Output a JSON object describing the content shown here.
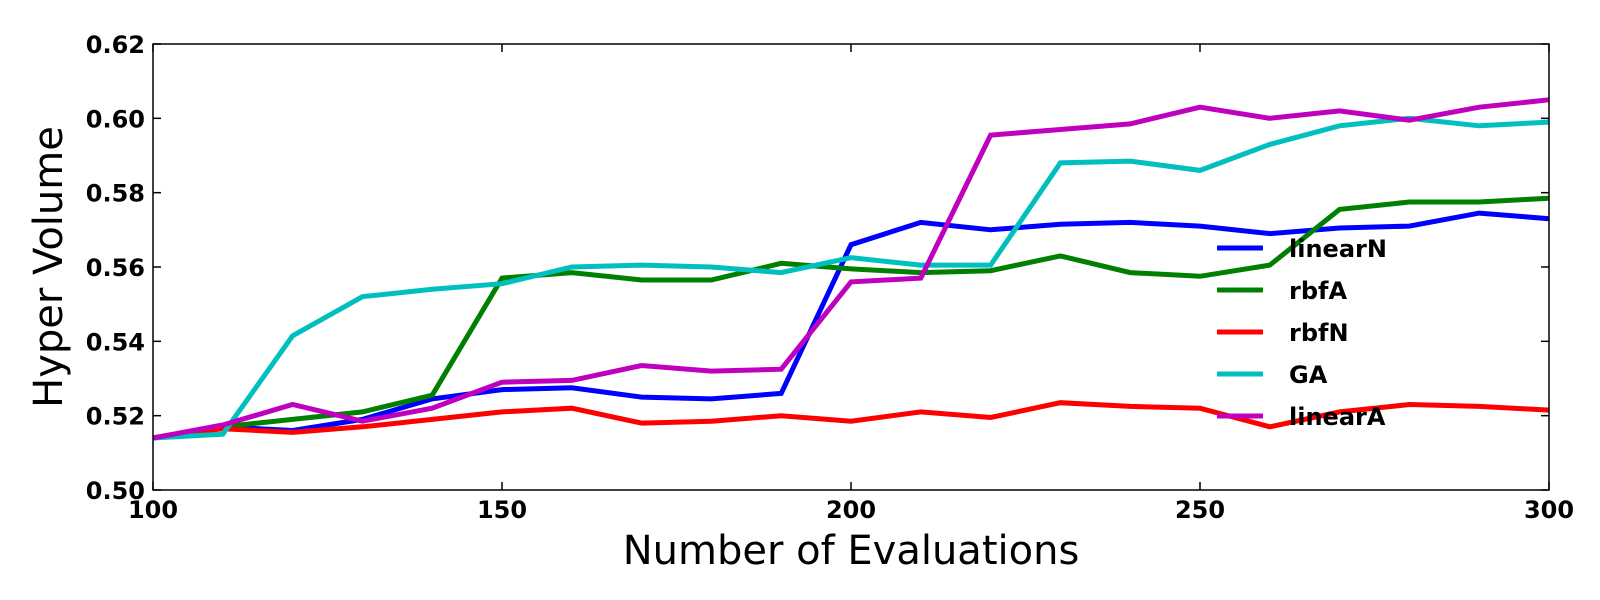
{
  "chart_data": {
    "type": "line",
    "title": "",
    "xlabel": "Number of Evaluations",
    "ylabel": "Hyper Volume",
    "xlim": [
      100,
      300
    ],
    "ylim": [
      0.5,
      0.62
    ],
    "xticks": [
      "100",
      "150",
      "200",
      "250",
      "300"
    ],
    "yticks": [
      "0.50",
      "0.52",
      "0.54",
      "0.56",
      "0.58",
      "0.60",
      "0.62"
    ],
    "grid": false,
    "legend_position": "center-right",
    "x": [
      100,
      110,
      120,
      130,
      140,
      150,
      160,
      170,
      180,
      190,
      200,
      210,
      220,
      230,
      240,
      250,
      260,
      270,
      280,
      290,
      300
    ],
    "series": [
      {
        "name": "linearN",
        "color": "#0000ff",
        "values": [
          0.514,
          0.517,
          0.516,
          0.519,
          0.5245,
          0.527,
          0.5275,
          0.525,
          0.5245,
          0.526,
          0.566,
          0.572,
          0.57,
          0.5715,
          0.572,
          0.571,
          0.569,
          0.5705,
          0.571,
          0.5745,
          0.573
        ]
      },
      {
        "name": "rbfA",
        "color": "#008000",
        "values": [
          0.514,
          0.517,
          0.519,
          0.521,
          0.5255,
          0.557,
          0.5585,
          0.5565,
          0.5565,
          0.561,
          0.5595,
          0.5585,
          0.559,
          0.563,
          0.5585,
          0.5575,
          0.5605,
          0.5755,
          0.5775,
          0.5775,
          0.5785
        ]
      },
      {
        "name": "rbfN",
        "color": "#ff0000",
        "values": [
          0.514,
          0.5165,
          0.5155,
          0.517,
          0.519,
          0.521,
          0.522,
          0.518,
          0.5185,
          0.52,
          0.5185,
          0.521,
          0.5195,
          0.5235,
          0.5225,
          0.522,
          0.517,
          0.521,
          0.523,
          0.5225,
          0.5215
        ]
      },
      {
        "name": "GA",
        "color": "#00bfbf",
        "values": [
          0.514,
          0.515,
          0.5415,
          0.552,
          0.554,
          0.5555,
          0.56,
          0.5605,
          0.56,
          0.5585,
          0.5625,
          0.5605,
          0.5605,
          0.588,
          0.5885,
          0.586,
          0.593,
          0.598,
          0.6,
          0.598,
          0.599
        ]
      },
      {
        "name": "linearA",
        "color": "#bf00bf",
        "values": [
          0.514,
          0.5175,
          0.523,
          0.5185,
          0.522,
          0.529,
          0.5295,
          0.5335,
          0.532,
          0.5325,
          0.556,
          0.557,
          0.5955,
          0.597,
          0.5985,
          0.603,
          0.6,
          0.602,
          0.5995,
          0.603,
          0.605
        ]
      }
    ]
  }
}
